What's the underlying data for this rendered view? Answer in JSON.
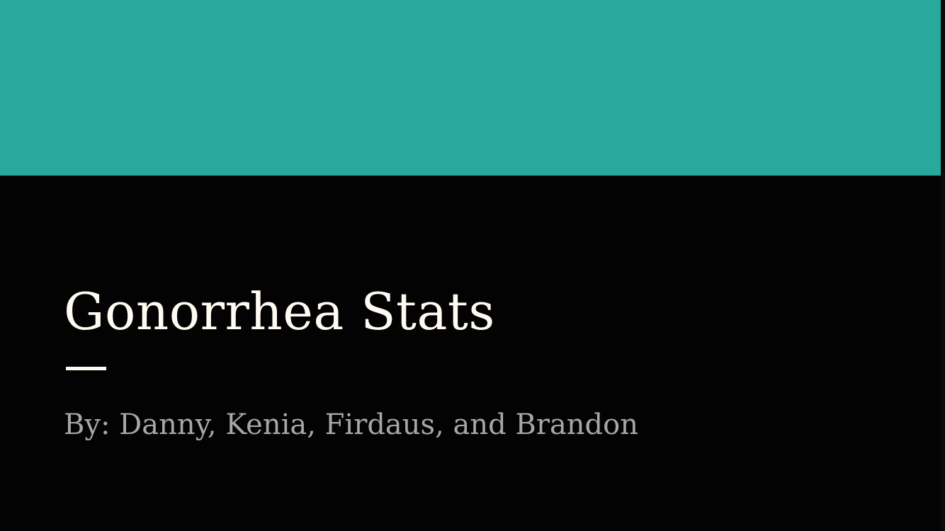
{
  "slide": {
    "title": "Gonorrhea Stats",
    "subtitle": "By: Danny, Kenia, Firdaus, and Brandon"
  },
  "colors": {
    "band": "#29a89d",
    "background": "#030303",
    "title": "#fffbf2",
    "subtitle": "#a9a6a9"
  }
}
